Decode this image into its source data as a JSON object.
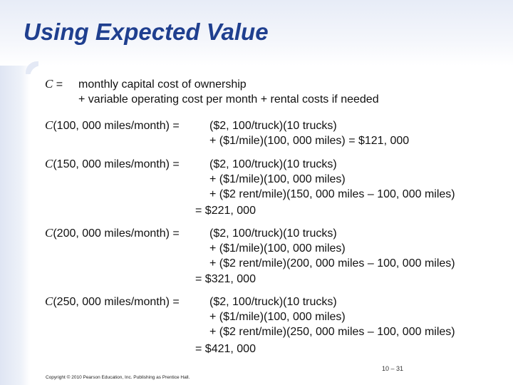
{
  "slide": {
    "title": "Using Expected Value",
    "symbol": "C",
    "definition": {
      "eq": "=",
      "line1": "monthly capital cost of ownership",
      "line2": "+ variable operating cost per month + rental costs if needed"
    },
    "cases": [
      {
        "head": "(100, 000 miles/month) =",
        "lines": [
          "($2, 100/truck)(10 trucks)",
          "+ ($1/mile)(100, 000 miles) = $121, 000"
        ]
      },
      {
        "head": "(150, 000 miles/month) =",
        "lines": [
          "($2, 100/truck)(10 trucks)",
          "+ ($1/mile)(100, 000 miles)",
          "+ ($2 rent/mile)(150, 000 miles – 100, 000 miles)"
        ],
        "result": "= $221, 000"
      },
      {
        "head": "(200, 000 miles/month) =",
        "lines": [
          "($2, 100/truck)(10 trucks)",
          "+ ($1/mile)(100, 000 miles)",
          "+ ($2 rent/mile)(200, 000 miles – 100, 000 miles)"
        ],
        "result": "= $321, 000"
      },
      {
        "head": "(250, 000 miles/month) =",
        "lines": [
          "($2, 100/truck)(10 trucks)",
          "+ ($1/mile)(100, 000 miles)",
          "+ ($2 rent/mile)(250, 000 miles – 100, 000 miles)"
        ],
        "result": "= $421, 000"
      }
    ],
    "page_number": "10 – 31",
    "copyright": "Copyright © 2010 Pearson Education, Inc. Publishing as Prentice Hall."
  },
  "colors": {
    "title": "#1f3f8f",
    "band": "#e4e9f5",
    "text": "#111111"
  }
}
